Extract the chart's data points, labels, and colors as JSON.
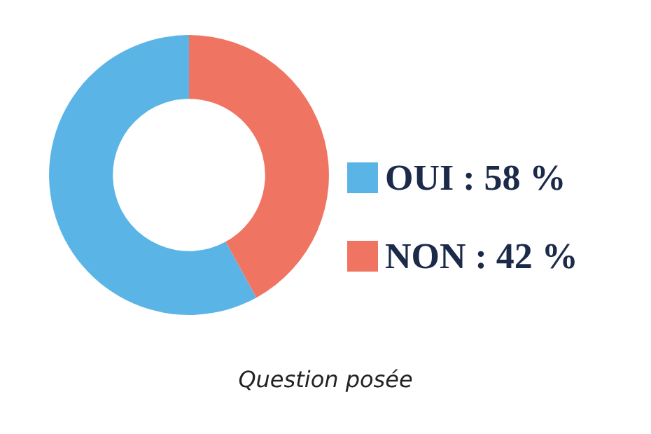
{
  "chart_data": {
    "type": "donut",
    "categories": [
      "OUI",
      "NON"
    ],
    "values": [
      58,
      42
    ],
    "colors": [
      "#5ab4e5",
      "#f07462"
    ],
    "value_labels": [
      "58 %",
      "42 %"
    ],
    "legend": "right",
    "annotations": [
      "Question posée"
    ]
  }
}
